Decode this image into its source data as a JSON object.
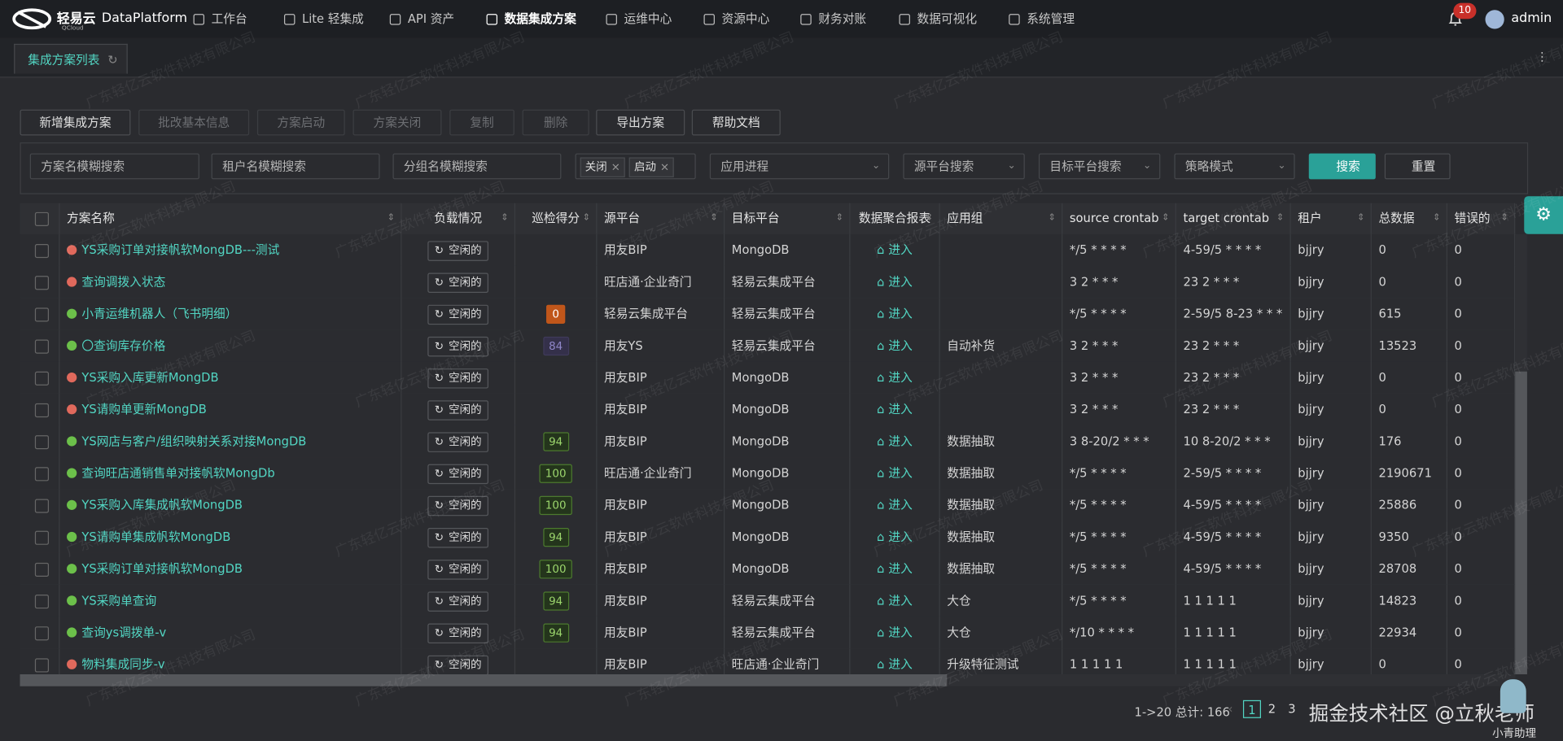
{
  "nav": {
    "logo": "轻易云",
    "logo_sub": "QCloud",
    "app": "DataPlatform",
    "items": [
      "工作台",
      "Lite 轻集成",
      "API 资产",
      "数据集成方案",
      "运维中心",
      "资源中心",
      "财务对账",
      "数据可视化",
      "系统管理"
    ],
    "active": 3,
    "badge": "10",
    "user": "admin"
  },
  "tabs": [
    "集成方案列表"
  ],
  "toolbar": [
    {
      "label": "新增集成方案",
      "enabled": true
    },
    {
      "label": "批改基本信息",
      "enabled": false
    },
    {
      "label": "方案启动",
      "enabled": false
    },
    {
      "label": "方案关闭",
      "enabled": false
    },
    {
      "label": "复制",
      "enabled": false
    },
    {
      "label": "删除",
      "enabled": false
    },
    {
      "label": "导出方案",
      "enabled": true
    },
    {
      "label": "帮助文档",
      "enabled": true
    }
  ],
  "filters": {
    "inputs": [
      "方案名模糊搜索",
      "租户名模糊搜索",
      "分组名模糊搜索"
    ],
    "tags": [
      "关闭",
      "启动"
    ],
    "selects": [
      "应用进程",
      "源平台搜索",
      "目标平台搜索",
      "策略模式"
    ],
    "search": "搜索",
    "reset": "重置"
  },
  "table": {
    "columns": [
      "方案名称",
      "负载情况",
      "巡检得分",
      "源平台",
      "目标平台",
      "数据聚合报表",
      "应用组",
      "source crontab",
      "target crontab",
      "租户",
      "总数据",
      "错误的"
    ],
    "rows": [
      {
        "state": "paused",
        "name": "YS采购订单对接帆软MongDB---测试",
        "load": "空闲的",
        "score": null,
        "source": "用友BIP",
        "target": "MongoDB",
        "report": "进入",
        "group": null,
        "src_cron": "*/5 * * * *",
        "tgt_cron": "4-59/5 * * * *",
        "tenant": "bjjry",
        "total": "0",
        "errors": "0"
      },
      {
        "state": "paused",
        "name": "查询调拨入状态",
        "load": "空闲的",
        "score": null,
        "source": "旺店通·企业奇门",
        "target": "轻易云集成平台",
        "report": "进入",
        "group": null,
        "src_cron": "3 2 * * *",
        "tgt_cron": "23 2 * * *",
        "tenant": "bjjry",
        "total": "0",
        "errors": "0"
      },
      {
        "state": "running",
        "name": "小青运维机器人（飞书明细）",
        "load": "空闲的",
        "score": "0",
        "source": "轻易云集成平台",
        "target": "轻易云集成平台",
        "report": "进入",
        "group": null,
        "src_cron": "*/5 * * * *",
        "tgt_cron": "2-59/5 8-23 * * *",
        "tenant": "bjjry",
        "total": "615",
        "errors": "0"
      },
      {
        "state": "running",
        "name": "〇查询库存价格",
        "load": "空闲的",
        "score": "84",
        "source": "用友YS",
        "target": "轻易云集成平台",
        "report": "进入",
        "group": "自动补货",
        "src_cron": "3 2 * * *",
        "tgt_cron": "23 2 * * *",
        "tenant": "bjjry",
        "total": "13523",
        "errors": "0"
      },
      {
        "state": "paused",
        "name": "YS采购入库更新MongDB",
        "load": "空闲的",
        "score": null,
        "source": "用友BIP",
        "target": "MongoDB",
        "report": "进入",
        "group": null,
        "src_cron": "3 2 * * *",
        "tgt_cron": "23 2 * * *",
        "tenant": "bjjry",
        "total": "0",
        "errors": "0"
      },
      {
        "state": "paused",
        "name": "YS请购单更新MongDB",
        "load": "空闲的",
        "score": null,
        "source": "用友BIP",
        "target": "MongoDB",
        "report": "进入",
        "group": null,
        "src_cron": "3 2 * * *",
        "tgt_cron": "23 2 * * *",
        "tenant": "bjjry",
        "total": "0",
        "errors": "0"
      },
      {
        "state": "running",
        "name": "YS网店与客户/组织映射关系对接MongDB",
        "load": "空闲的",
        "score": "94",
        "source": "用友BIP",
        "target": "MongoDB",
        "report": "进入",
        "group": "数据抽取",
        "src_cron": "3 8-20/2 * * *",
        "tgt_cron": "10 8-20/2 * * *",
        "tenant": "bjjry",
        "total": "176",
        "errors": "0"
      },
      {
        "state": "running",
        "name": "查询旺店通销售单对接帆软MongDb",
        "load": "空闲的",
        "score": "100",
        "source": "旺店通·企业奇门",
        "target": "MongoDB",
        "report": "进入",
        "group": "数据抽取",
        "src_cron": "*/5 * * * *",
        "tgt_cron": "2-59/5 * * * *",
        "tenant": "bjjry",
        "total": "2190671",
        "errors": "0"
      },
      {
        "state": "running",
        "name": "YS采购入库集成帆软MongDB",
        "load": "空闲的",
        "score": "100",
        "source": "用友BIP",
        "target": "MongoDB",
        "report": "进入",
        "group": "数据抽取",
        "src_cron": "*/5 * * * *",
        "tgt_cron": "4-59/5 * * * *",
        "tenant": "bjjry",
        "total": "25886",
        "errors": "0"
      },
      {
        "state": "running",
        "name": "YS请购单集成帆软MongDB",
        "load": "空闲的",
        "score": "94",
        "source": "用友BIP",
        "target": "MongoDB",
        "report": "进入",
        "group": "数据抽取",
        "src_cron": "*/5 * * * *",
        "tgt_cron": "4-59/5 * * * *",
        "tenant": "bjjry",
        "total": "9350",
        "errors": "0"
      },
      {
        "state": "running",
        "name": "YS采购订单对接帆软MongDB",
        "load": "空闲的",
        "score": "100",
        "source": "用友BIP",
        "target": "MongoDB",
        "report": "进入",
        "group": "数据抽取",
        "src_cron": "*/5 * * * *",
        "tgt_cron": "4-59/5 * * * *",
        "tenant": "bjjry",
        "total": "28708",
        "errors": "0"
      },
      {
        "state": "running",
        "name": "YS采购单查询",
        "load": "空闲的",
        "score": "94",
        "source": "用友BIP",
        "target": "轻易云集成平台",
        "report": "进入",
        "group": "大仓",
        "src_cron": "*/5 * * * *",
        "tgt_cron": "1 1 1 1 1",
        "tenant": "bjjry",
        "total": "14823",
        "errors": "0"
      },
      {
        "state": "running",
        "name": "查询ys调拨单-v",
        "load": "空闲的",
        "score": "94",
        "source": "用友BIP",
        "target": "轻易云集成平台",
        "report": "进入",
        "group": "大仓",
        "src_cron": "*/10 * * * *",
        "tgt_cron": "1 1 1 1 1",
        "tenant": "bjjry",
        "total": "22934",
        "errors": "0"
      },
      {
        "state": "paused",
        "name": "物料集成同步-v",
        "load": "空闲的",
        "score": null,
        "source": "用友BIP",
        "target": "旺店通·企业奇门",
        "report": "进入",
        "group": "升级特征测试",
        "src_cron": "1 1 1 1 1",
        "tgt_cron": "1 1 1 1 1",
        "tenant": "bjjry",
        "total": "0",
        "errors": "0"
      }
    ]
  },
  "pagination": {
    "summary": "1->20 总计: 166",
    "pages": [
      "1",
      "2",
      "3"
    ],
    "current": 0
  },
  "watermark": "广东轻亿云软件科技有限公司",
  "overlay": "掘金技术社区 @立秋老师",
  "assistant": "小青助理"
}
